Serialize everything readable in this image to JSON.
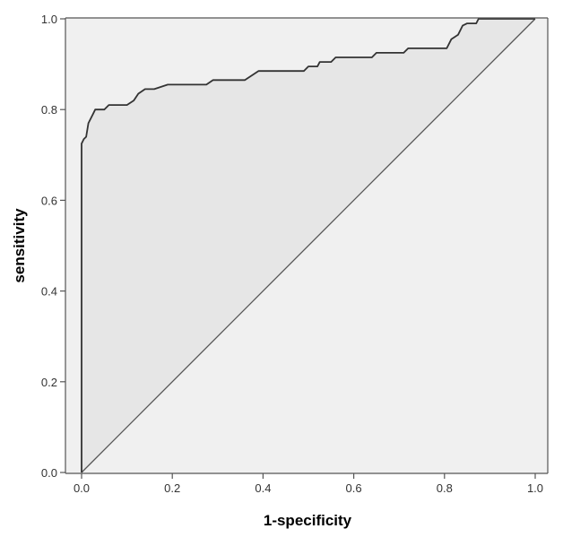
{
  "chart_data": {
    "type": "line",
    "xlabel": "1-specificity",
    "ylabel": "sensitivity",
    "xlim": [
      0.0,
      1.0
    ],
    "ylim": [
      0.0,
      1.0
    ],
    "x_ticks": [
      "0.0",
      "0.2",
      "0.4",
      "0.6",
      "0.8",
      "1.0"
    ],
    "y_ticks": [
      "0.0",
      "0.2",
      "0.4",
      "0.6",
      "0.8",
      "1.0"
    ],
    "grid": false,
    "legend": "none",
    "colors": {
      "plot_background": "#f0f0f0",
      "curve": "#333333",
      "reference": "#555555",
      "axis": "#555555"
    },
    "series": [
      {
        "points": [
          [
            0.0,
            0.0
          ],
          [
            0.0,
            0.725
          ],
          [
            0.005,
            0.735
          ],
          [
            0.01,
            0.74
          ],
          [
            0.015,
            0.77
          ],
          [
            0.025,
            0.79
          ],
          [
            0.03,
            0.8
          ],
          [
            0.05,
            0.8
          ],
          [
            0.06,
            0.81
          ],
          [
            0.1,
            0.81
          ],
          [
            0.115,
            0.82
          ],
          [
            0.125,
            0.835
          ],
          [
            0.14,
            0.845
          ],
          [
            0.16,
            0.845
          ],
          [
            0.19,
            0.855
          ],
          [
            0.275,
            0.855
          ],
          [
            0.29,
            0.865
          ],
          [
            0.36,
            0.865
          ],
          [
            0.39,
            0.885
          ],
          [
            0.49,
            0.885
          ],
          [
            0.5,
            0.895
          ],
          [
            0.52,
            0.895
          ],
          [
            0.525,
            0.905
          ],
          [
            0.55,
            0.905
          ],
          [
            0.56,
            0.915
          ],
          [
            0.64,
            0.915
          ],
          [
            0.65,
            0.925
          ],
          [
            0.71,
            0.925
          ],
          [
            0.72,
            0.935
          ],
          [
            0.805,
            0.935
          ],
          [
            0.815,
            0.955
          ],
          [
            0.83,
            0.965
          ],
          [
            0.835,
            0.975
          ],
          [
            0.84,
            0.985
          ],
          [
            0.85,
            0.99
          ],
          [
            0.87,
            0.99
          ],
          [
            0.875,
            1.0
          ],
          [
            1.0,
            1.0
          ]
        ]
      },
      {
        "points": [
          [
            0.0,
            0.0
          ],
          [
            1.0,
            1.0
          ]
        ]
      }
    ]
  }
}
